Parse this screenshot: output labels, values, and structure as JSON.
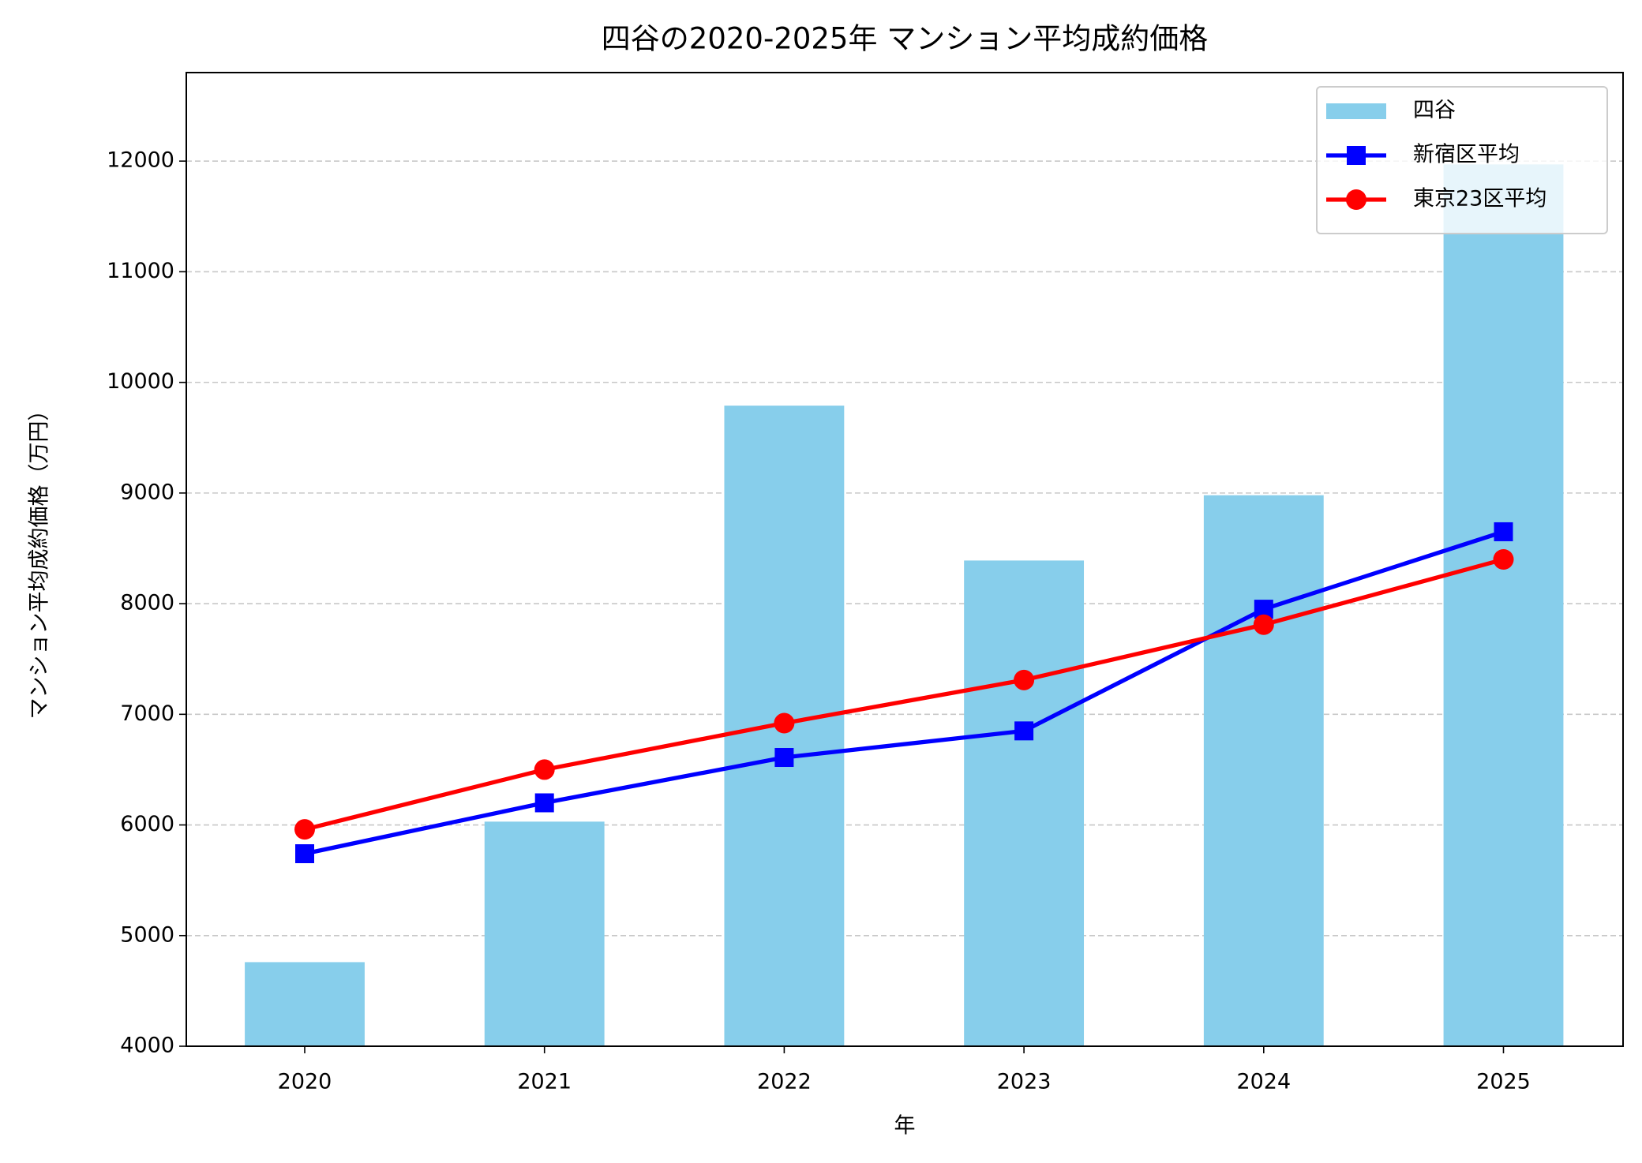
{
  "chart_data": {
    "type": "bar",
    "title": "四谷の2020-2025年 マンション平均成約価格",
    "x_label": "年",
    "y_label": "マンション平均成約価格（万円）",
    "categories": [
      "2020",
      "2021",
      "2022",
      "2023",
      "2024",
      "2025"
    ],
    "series": [
      {
        "name": "四谷",
        "type": "bar",
        "color": "#87ceeb",
        "values": [
          4760,
          6030,
          9790,
          8390,
          8980,
          11970
        ]
      },
      {
        "name": "新宿区平均",
        "type": "line",
        "marker": "square",
        "color": "#0000ff",
        "values": [
          5740,
          6200,
          6610,
          6850,
          7950,
          8650
        ]
      },
      {
        "name": "東京23区平均",
        "type": "line",
        "marker": "circle",
        "color": "#ff0000",
        "values": [
          5960,
          6500,
          6920,
          7310,
          7810,
          8400
        ]
      }
    ],
    "ylim": [
      4000,
      12800
    ],
    "yticks": [
      4000,
      5000,
      6000,
      7000,
      8000,
      9000,
      10000,
      11000,
      12000
    ],
    "grid": true,
    "legend": "upper right"
  }
}
